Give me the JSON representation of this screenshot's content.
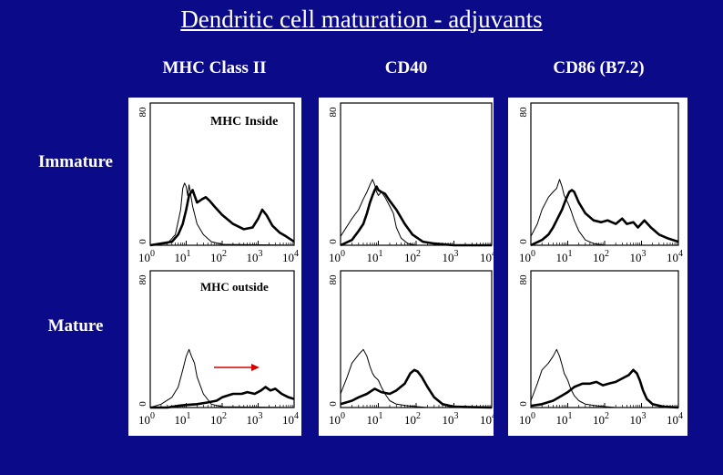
{
  "slide": {
    "title": "Dendritic cell maturation - adjuvants",
    "columns": [
      "MHC Class II",
      "CD40",
      "CD86 (B7.2)"
    ],
    "rows": [
      "Immature",
      "Mature"
    ],
    "colors": {
      "background": "#0b0b8a",
      "arrow": "#d40000"
    }
  },
  "chart_data": [
    {
      "type": "line",
      "id": "mhc-immature",
      "annotation": "MHC Inside",
      "x_scale": "log",
      "xlim": [
        1,
        10000
      ],
      "x_tick_labels": [
        [
          "10",
          "0"
        ],
        [
          "10",
          "1"
        ],
        [
          "10",
          "2"
        ],
        [
          "10",
          "3"
        ],
        [
          "10",
          "4"
        ]
      ],
      "y_tick_labels": [
        "0",
        "80"
      ],
      "ylim": [
        0,
        80
      ],
      "series": [
        {
          "style": "thin",
          "points": [
            [
              1,
              0
            ],
            [
              3,
              1
            ],
            [
              5,
              6
            ],
            [
              7,
              20
            ],
            [
              8,
              32
            ],
            [
              9,
              35
            ],
            [
              10,
              33
            ],
            [
              11,
              28
            ],
            [
              12,
              34
            ],
            [
              13,
              30
            ],
            [
              15,
              22
            ],
            [
              20,
              12
            ],
            [
              30,
              6
            ],
            [
              50,
              2
            ],
            [
              100,
              0.5
            ],
            [
              10000,
              0
            ]
          ]
        },
        {
          "style": "thick",
          "points": [
            [
              1,
              0
            ],
            [
              4,
              2
            ],
            [
              6,
              6
            ],
            [
              8,
              12
            ],
            [
              10,
              20
            ],
            [
              12,
              28
            ],
            [
              15,
              31
            ],
            [
              20,
              24
            ],
            [
              28,
              26
            ],
            [
              35,
              27
            ],
            [
              45,
              25
            ],
            [
              60,
              22
            ],
            [
              100,
              17
            ],
            [
              200,
              12
            ],
            [
              400,
              9
            ],
            [
              700,
              10
            ],
            [
              1000,
              15
            ],
            [
              1300,
              20
            ],
            [
              1700,
              17
            ],
            [
              2500,
              11
            ],
            [
              4000,
              7
            ],
            [
              6000,
              5
            ],
            [
              10000,
              2
            ]
          ]
        }
      ]
    },
    {
      "type": "line",
      "id": "cd40-immature",
      "annotation": "",
      "x_scale": "log",
      "xlim": [
        1,
        10000
      ],
      "x_tick_labels": [
        [
          "10",
          "0"
        ],
        [
          "10",
          "1"
        ],
        [
          "10",
          "2"
        ],
        [
          "10",
          "3"
        ],
        [
          "10",
          "4"
        ]
      ],
      "y_tick_labels": [
        "0",
        "80"
      ],
      "ylim": [
        0,
        80
      ],
      "series": [
        {
          "style": "thin",
          "points": [
            [
              1,
              5
            ],
            [
              2,
              15
            ],
            [
              3,
              20
            ],
            [
              4,
              26
            ],
            [
              5,
              30
            ],
            [
              6,
              34
            ],
            [
              7,
              37
            ],
            [
              8,
              34
            ],
            [
              9,
              30
            ],
            [
              10,
              28
            ],
            [
              12,
              30
            ],
            [
              15,
              27
            ],
            [
              20,
              22
            ],
            [
              25,
              18
            ],
            [
              30,
              10
            ],
            [
              40,
              4
            ],
            [
              60,
              1
            ],
            [
              100,
              0
            ],
            [
              10000,
              0
            ]
          ]
        },
        {
          "style": "thick",
          "points": [
            [
              1,
              0
            ],
            [
              2,
              3
            ],
            [
              3,
              8
            ],
            [
              4,
              12
            ],
            [
              5,
              18
            ],
            [
              6,
              24
            ],
            [
              7,
              28
            ],
            [
              8,
              31
            ],
            [
              9,
              33
            ],
            [
              10,
              31
            ],
            [
              12,
              30
            ],
            [
              15,
              29
            ],
            [
              20,
              25
            ],
            [
              30,
              20
            ],
            [
              50,
              12
            ],
            [
              80,
              6
            ],
            [
              150,
              2
            ],
            [
              300,
              1
            ],
            [
              1000,
              0
            ],
            [
              10000,
              0
            ]
          ]
        }
      ]
    },
    {
      "type": "line",
      "id": "cd86-immature",
      "annotation": "",
      "x_scale": "log",
      "xlim": [
        1,
        10000
      ],
      "x_tick_labels": [
        [
          "10",
          "0"
        ],
        [
          "10",
          "1"
        ],
        [
          "10",
          "2"
        ],
        [
          "10",
          "3"
        ],
        [
          "10",
          "4"
        ]
      ],
      "y_tick_labels": [
        "0",
        "80"
      ],
      "ylim": [
        0,
        80
      ],
      "series": [
        {
          "style": "thin",
          "points": [
            [
              1,
              5
            ],
            [
              1.5,
              12
            ],
            [
              2,
              20
            ],
            [
              3,
              27
            ],
            [
              4,
              30
            ],
            [
              5,
              32
            ],
            [
              6,
              37
            ],
            [
              7,
              33
            ],
            [
              8,
              28
            ],
            [
              9,
              26
            ],
            [
              10,
              24
            ],
            [
              12,
              20
            ],
            [
              15,
              14
            ],
            [
              20,
              8
            ],
            [
              30,
              3
            ],
            [
              50,
              1
            ],
            [
              100,
              0
            ],
            [
              10000,
              0
            ]
          ]
        },
        {
          "style": "thick",
          "points": [
            [
              1,
              0
            ],
            [
              2,
              3
            ],
            [
              3,
              6
            ],
            [
              4,
              10
            ],
            [
              5,
              14
            ],
            [
              7,
              20
            ],
            [
              9,
              26
            ],
            [
              11,
              30
            ],
            [
              13,
              31
            ],
            [
              15,
              30
            ],
            [
              20,
              24
            ],
            [
              30,
              18
            ],
            [
              50,
              14
            ],
            [
              80,
              13
            ],
            [
              120,
              14
            ],
            [
              200,
              12
            ],
            [
              300,
              15
            ],
            [
              400,
              12
            ],
            [
              600,
              13
            ],
            [
              800,
              10
            ],
            [
              1200,
              14
            ],
            [
              1800,
              10
            ],
            [
              3000,
              6
            ],
            [
              5000,
              4
            ],
            [
              10000,
              2
            ]
          ]
        }
      ]
    },
    {
      "type": "line",
      "id": "mhc-mature",
      "annotation": "MHC outside",
      "x_scale": "log",
      "xlim": [
        1,
        10000
      ],
      "x_tick_labels": [
        [
          "10",
          "0"
        ],
        [
          "10",
          "1"
        ],
        [
          "10",
          "2"
        ],
        [
          "10",
          "3"
        ],
        [
          "10",
          "4"
        ]
      ],
      "y_tick_labels": [
        "0",
        "80"
      ],
      "ylim": [
        0,
        80
      ],
      "series": [
        {
          "style": "thin",
          "points": [
            [
              1,
              0
            ],
            [
              2,
              2
            ],
            [
              4,
              6
            ],
            [
              6,
              12
            ],
            [
              8,
              22
            ],
            [
              10,
              30
            ],
            [
              12,
              34
            ],
            [
              14,
              30
            ],
            [
              17,
              26
            ],
            [
              20,
              18
            ],
            [
              30,
              8
            ],
            [
              50,
              2
            ],
            [
              100,
              0.5
            ],
            [
              10000,
              0
            ]
          ]
        },
        {
          "style": "thick",
          "points": [
            [
              1,
              0
            ],
            [
              3,
              0
            ],
            [
              6,
              1
            ],
            [
              10,
              1.5
            ],
            [
              20,
              2
            ],
            [
              40,
              3
            ],
            [
              70,
              4
            ],
            [
              100,
              6
            ],
            [
              200,
              8
            ],
            [
              350,
              8
            ],
            [
              500,
              9
            ],
            [
              800,
              8
            ],
            [
              1200,
              10
            ],
            [
              1600,
              12
            ],
            [
              2200,
              10
            ],
            [
              3000,
              11
            ],
            [
              4500,
              8
            ],
            [
              7000,
              6
            ],
            [
              10000,
              5
            ]
          ]
        }
      ]
    },
    {
      "type": "line",
      "id": "cd40-mature",
      "annotation": "",
      "x_scale": "log",
      "xlim": [
        1,
        10000
      ],
      "x_tick_labels": [
        [
          "10",
          "0"
        ],
        [
          "10",
          "1"
        ],
        [
          "10",
          "2"
        ],
        [
          "10",
          "3"
        ],
        [
          "10",
          "4"
        ]
      ],
      "y_tick_labels": [
        "0",
        "80"
      ],
      "ylim": [
        0,
        80
      ],
      "series": [
        {
          "style": "thin",
          "points": [
            [
              1,
              8
            ],
            [
              1.5,
              18
            ],
            [
              2,
              26
            ],
            [
              3,
              31
            ],
            [
              4,
              34
            ],
            [
              5,
              30
            ],
            [
              6,
              24
            ],
            [
              7,
              20
            ],
            [
              8,
              18
            ],
            [
              10,
              16
            ],
            [
              12,
              12
            ],
            [
              15,
              8
            ],
            [
              20,
              4
            ],
            [
              30,
              2
            ],
            [
              60,
              1
            ],
            [
              200,
              0
            ],
            [
              10000,
              0
            ]
          ]
        },
        {
          "style": "thick",
          "points": [
            [
              1,
              2
            ],
            [
              2,
              4
            ],
            [
              3,
              6
            ],
            [
              5,
              8
            ],
            [
              8,
              11
            ],
            [
              12,
              9
            ],
            [
              20,
              8
            ],
            [
              30,
              10
            ],
            [
              50,
              14
            ],
            [
              70,
              20
            ],
            [
              90,
              22
            ],
            [
              110,
              21
            ],
            [
              140,
              18
            ],
            [
              200,
              12
            ],
            [
              300,
              6
            ],
            [
              500,
              2
            ],
            [
              1000,
              0.5
            ],
            [
              10000,
              0
            ]
          ]
        }
      ]
    },
    {
      "type": "line",
      "id": "cd86-mature",
      "annotation": "",
      "x_scale": "log",
      "xlim": [
        1,
        10000
      ],
      "x_tick_labels": [
        [
          "10",
          "0"
        ],
        [
          "10",
          "1"
        ],
        [
          "10",
          "2"
        ],
        [
          "10",
          "3"
        ],
        [
          "10",
          "4"
        ]
      ],
      "y_tick_labels": [
        "0",
        "80"
      ],
      "ylim": [
        0,
        80
      ],
      "series": [
        {
          "style": "thin",
          "points": [
            [
              1,
              4
            ],
            [
              1.5,
              14
            ],
            [
              2,
              22
            ],
            [
              3,
              26
            ],
            [
              4,
              30
            ],
            [
              5,
              34
            ],
            [
              6,
              30
            ],
            [
              7,
              25
            ],
            [
              8,
              20
            ],
            [
              10,
              16
            ],
            [
              12,
              11
            ],
            [
              15,
              7
            ],
            [
              20,
              4
            ],
            [
              30,
              2
            ],
            [
              60,
              1
            ],
            [
              200,
              0
            ],
            [
              10000,
              0
            ]
          ]
        },
        {
          "style": "thick",
          "points": [
            [
              1,
              1
            ],
            [
              2,
              2
            ],
            [
              4,
              4
            ],
            [
              7,
              7
            ],
            [
              10,
              9
            ],
            [
              15,
              12
            ],
            [
              25,
              14
            ],
            [
              40,
              14
            ],
            [
              60,
              15
            ],
            [
              90,
              13
            ],
            [
              130,
              14
            ],
            [
              200,
              15
            ],
            [
              300,
              17
            ],
            [
              450,
              19
            ],
            [
              600,
              22
            ],
            [
              750,
              20
            ],
            [
              900,
              16
            ],
            [
              1100,
              10
            ],
            [
              1400,
              5
            ],
            [
              2000,
              2
            ],
            [
              4000,
              0.5
            ],
            [
              10000,
              0
            ]
          ]
        }
      ]
    }
  ]
}
